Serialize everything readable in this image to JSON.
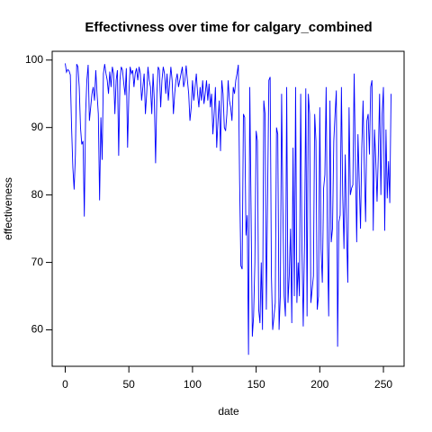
{
  "chart_data": {
    "type": "line",
    "title": "Effectivness over time for calgary_combined",
    "x_label": "date",
    "y_label": "effectiveness",
    "xlim": [
      -10.24,
      266.24
    ],
    "ylim": [
      54.6,
      101.3
    ],
    "xticks": [
      0,
      50,
      100,
      150,
      200,
      250
    ],
    "yticks": [
      60,
      70,
      80,
      90,
      100
    ],
    "color": "#0000ff",
    "x": [
      0,
      1,
      2,
      3,
      4,
      5,
      6,
      7,
      8,
      9,
      10,
      11,
      12,
      13,
      14,
      15,
      16,
      17,
      18,
      19,
      20,
      21,
      22,
      23,
      24,
      25,
      26,
      27,
      28,
      29,
      30,
      31,
      32,
      33,
      34,
      35,
      36,
      37,
      38,
      39,
      40,
      41,
      42,
      43,
      44,
      45,
      46,
      47,
      48,
      49,
      50,
      51,
      52,
      53,
      54,
      55,
      56,
      57,
      58,
      59,
      60,
      61,
      62,
      63,
      64,
      65,
      66,
      67,
      68,
      69,
      70,
      71,
      72,
      73,
      74,
      75,
      76,
      77,
      78,
      79,
      80,
      81,
      82,
      83,
      84,
      85,
      86,
      87,
      88,
      89,
      90,
      91,
      92,
      93,
      94,
      95,
      96,
      97,
      98,
      99,
      100,
      101,
      102,
      103,
      104,
      105,
      106,
      107,
      108,
      109,
      110,
      111,
      112,
      113,
      114,
      115,
      116,
      117,
      118,
      119,
      120,
      121,
      122,
      123,
      124,
      125,
      126,
      127,
      128,
      129,
      130,
      131,
      132,
      133,
      134,
      135,
      136,
      137,
      138,
      139,
      140,
      141,
      142,
      143,
      144,
      145,
      146,
      147,
      148,
      149,
      150,
      151,
      152,
      153,
      154,
      155,
      156,
      157,
      158,
      159,
      160,
      161,
      162,
      163,
      164,
      165,
      166,
      167,
      168,
      169,
      170,
      171,
      172,
      173,
      174,
      175,
      176,
      177,
      178,
      179,
      180,
      181,
      182,
      183,
      184,
      185,
      186,
      187,
      188,
      189,
      190,
      191,
      192,
      193,
      194,
      195,
      196,
      197,
      198,
      199,
      200,
      201,
      202,
      203,
      204,
      205,
      206,
      207,
      208,
      209,
      210,
      211,
      212,
      213,
      214,
      215,
      216,
      217,
      218,
      219,
      220,
      221,
      222,
      223,
      224,
      225,
      226,
      227,
      228,
      229,
      230,
      231,
      232,
      233,
      234,
      235,
      236,
      237,
      238,
      239,
      240,
      241,
      242,
      243,
      244,
      245,
      246,
      247,
      248,
      249,
      250,
      251,
      252,
      253,
      254,
      255,
      256
    ],
    "values": [
      99.5,
      98.2,
      98.6,
      98.4,
      97.8,
      90,
      84,
      80.8,
      86,
      99.4,
      99,
      96,
      90,
      87.5,
      88,
      76.8,
      92,
      97,
      99.3,
      91,
      93,
      95,
      96,
      94,
      98.5,
      95,
      92,
      79.2,
      91.5,
      85.2,
      98,
      99.4,
      98,
      97,
      95,
      98.3,
      96,
      99,
      98,
      92,
      97,
      98.5,
      85.8,
      97,
      99,
      98.5,
      96.5,
      94.8,
      98.8,
      87,
      95,
      99,
      98,
      98.5,
      96,
      98,
      98.8,
      97,
      99,
      98,
      94,
      96,
      98,
      92,
      95,
      99,
      97,
      96,
      92,
      98,
      94,
      84.7,
      95,
      99,
      98.5,
      93,
      97,
      99,
      98,
      95,
      98,
      94,
      96.5,
      99,
      97,
      92,
      95,
      97,
      98,
      96,
      97,
      98,
      99,
      96,
      97,
      99.2,
      97,
      95,
      91,
      93,
      97,
      94,
      96,
      98,
      95,
      93,
      96,
      94,
      97,
      93.5,
      95,
      97,
      94,
      96.5,
      93,
      95,
      89,
      92,
      96,
      87,
      91,
      94,
      86.5,
      97,
      95,
      90,
      89.5,
      92,
      97,
      94,
      93,
      91,
      96,
      95,
      97,
      98,
      99.3,
      82,
      69.5,
      69,
      92,
      91.5,
      74,
      77,
      56.3,
      96,
      78,
      59,
      62,
      70,
      89.5,
      88,
      63,
      61,
      70,
      60,
      94,
      92,
      63,
      80,
      97,
      97.5,
      68,
      60,
      62,
      64,
      90,
      89,
      60,
      65,
      95,
      78,
      65,
      62,
      96,
      64,
      68,
      75,
      61,
      87,
      65,
      96,
      64,
      70,
      65,
      95,
      72,
      60.5,
      73,
      95.8,
      62,
      95,
      92,
      64,
      66,
      68,
      92,
      88,
      63,
      65,
      93,
      72,
      67,
      81,
      83,
      96,
      73,
      62,
      94,
      73,
      75,
      88,
      92,
      95.5,
      57.5,
      76,
      77,
      96,
      80,
      72,
      86,
      75,
      67,
      93,
      80,
      81,
      81.5,
      98,
      85,
      73,
      89,
      82,
      75,
      87,
      94,
      84,
      76,
      91,
      92,
      86,
      96,
      97,
      74.7,
      89.7,
      85,
      79,
      86,
      95,
      80,
      92,
      96,
      74.7,
      89.7,
      79.5,
      85,
      78.8,
      95
    ]
  }
}
